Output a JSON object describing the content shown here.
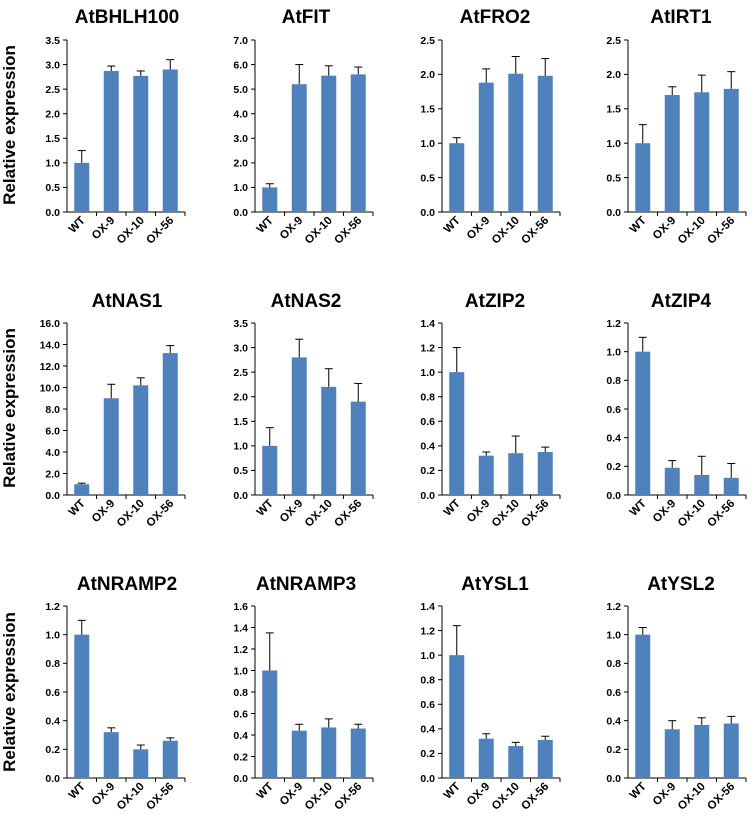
{
  "figure": {
    "ylabel": "Relative expression",
    "bar_color": "#4f81bd",
    "axis_color": "#000000"
  },
  "chart_data": [
    {
      "type": "bar",
      "title": "AtBHLH100",
      "categories": [
        "WT",
        "OX-9",
        "OX-10",
        "OX-56"
      ],
      "values": [
        1.0,
        2.87,
        2.77,
        2.9
      ],
      "errors": [
        0.25,
        0.1,
        0.1,
        0.2
      ],
      "ylim": [
        0,
        3.5
      ],
      "yticks": [
        "0.0",
        "0.5",
        "1.0",
        "1.5",
        "2.0",
        "2.5",
        "3.0",
        "3.5"
      ],
      "ylabel": "Relative expression"
    },
    {
      "type": "bar",
      "title": "AtFIT",
      "categories": [
        "WT",
        "OX-9",
        "OX-10",
        "OX-56"
      ],
      "values": [
        1.0,
        5.2,
        5.55,
        5.6
      ],
      "errors": [
        0.15,
        0.8,
        0.4,
        0.3
      ],
      "ylim": [
        0,
        7
      ],
      "yticks": [
        "0.0",
        "1.0",
        "2.0",
        "3.0",
        "4.0",
        "5.0",
        "6.0",
        "7.0"
      ],
      "ylabel": ""
    },
    {
      "type": "bar",
      "title": "AtFRO2",
      "categories": [
        "WT",
        "OX-9",
        "OX-10",
        "OX-56"
      ],
      "values": [
        1.0,
        1.88,
        2.01,
        1.98
      ],
      "errors": [
        0.08,
        0.2,
        0.25,
        0.25
      ],
      "ylim": [
        0,
        2.5
      ],
      "yticks": [
        "0.0",
        "0.5",
        "1.0",
        "1.5",
        "2.0",
        "2.5"
      ],
      "ylabel": ""
    },
    {
      "type": "bar",
      "title": "AtIRT1",
      "categories": [
        "WT",
        "OX-9",
        "OX-10",
        "OX-56"
      ],
      "values": [
        1.0,
        1.7,
        1.74,
        1.79
      ],
      "errors": [
        0.27,
        0.12,
        0.25,
        0.25
      ],
      "ylim": [
        0,
        2.5
      ],
      "yticks": [
        "0.0",
        "0.5",
        "1.0",
        "1.5",
        "2.0",
        "2.5"
      ],
      "ylabel": ""
    },
    {
      "type": "bar",
      "title": "AtNAS1",
      "categories": [
        "WT",
        "OX-9",
        "OX-10",
        "OX-56"
      ],
      "values": [
        1.0,
        9.0,
        10.2,
        13.2
      ],
      "errors": [
        0.1,
        1.3,
        0.7,
        0.7
      ],
      "ylim": [
        0,
        16
      ],
      "yticks": [
        "0.0",
        "2.0",
        "4.0",
        "6.0",
        "8.0",
        "10.0",
        "12.0",
        "14.0",
        "16.0"
      ],
      "ylabel": "Relative expression"
    },
    {
      "type": "bar",
      "title": "AtNAS2",
      "categories": [
        "WT",
        "OX-9",
        "OX-10",
        "OX-56"
      ],
      "values": [
        1.0,
        2.8,
        2.2,
        1.9
      ],
      "errors": [
        0.37,
        0.37,
        0.37,
        0.37
      ],
      "ylim": [
        0,
        3.5
      ],
      "yticks": [
        "0.0",
        "0.5",
        "1.0",
        "1.5",
        "2.0",
        "2.5",
        "3.0",
        "3.5"
      ],
      "ylabel": ""
    },
    {
      "type": "bar",
      "title": "AtZIP2",
      "categories": [
        "WT",
        "OX-9",
        "OX-10",
        "OX-56"
      ],
      "values": [
        1.0,
        0.32,
        0.34,
        0.35
      ],
      "errors": [
        0.2,
        0.03,
        0.14,
        0.04
      ],
      "ylim": [
        0,
        1.4
      ],
      "yticks": [
        "0.0",
        "0.2",
        "0.4",
        "0.6",
        "0.8",
        "1.0",
        "1.2",
        "1.4"
      ],
      "ylabel": ""
    },
    {
      "type": "bar",
      "title": "AtZIP4",
      "categories": [
        "WT",
        "OX-9",
        "OX-10",
        "OX-56"
      ],
      "values": [
        1.0,
        0.19,
        0.14,
        0.12
      ],
      "errors": [
        0.1,
        0.05,
        0.13,
        0.1
      ],
      "ylim": [
        0,
        1.2
      ],
      "yticks": [
        "0.0",
        "0.2",
        "0.4",
        "0.6",
        "0.8",
        "1.0",
        "1.2"
      ],
      "ylabel": ""
    },
    {
      "type": "bar",
      "title": "AtNRAMP2",
      "categories": [
        "WT",
        "OX-9",
        "OX-10",
        "OX-56"
      ],
      "values": [
        1.0,
        0.32,
        0.2,
        0.26
      ],
      "errors": [
        0.1,
        0.03,
        0.03,
        0.02
      ],
      "ylim": [
        0,
        1.2
      ],
      "yticks": [
        "0.0",
        "0.2",
        "0.4",
        "0.6",
        "0.8",
        "1.0",
        "1.2"
      ],
      "ylabel": "Relative expression"
    },
    {
      "type": "bar",
      "title": "AtNRAMP3",
      "categories": [
        "WT",
        "OX-9",
        "OX-10",
        "OX-56"
      ],
      "values": [
        1.0,
        0.44,
        0.47,
        0.46
      ],
      "errors": [
        0.35,
        0.06,
        0.08,
        0.04
      ],
      "ylim": [
        0,
        1.6
      ],
      "yticks": [
        "0.0",
        "0.2",
        "0.4",
        "0.6",
        "0.8",
        "1.0",
        "1.2",
        "1.4",
        "1.6"
      ],
      "ylabel": ""
    },
    {
      "type": "bar",
      "title": "AtYSL1",
      "categories": [
        "WT",
        "OX-9",
        "OX-10",
        "OX-56"
      ],
      "values": [
        1.0,
        0.32,
        0.26,
        0.31
      ],
      "errors": [
        0.24,
        0.04,
        0.03,
        0.03
      ],
      "ylim": [
        0,
        1.4
      ],
      "yticks": [
        "0.0",
        "0.2",
        "0.4",
        "0.6",
        "0.8",
        "1.0",
        "1.2",
        "1.4"
      ],
      "ylabel": ""
    },
    {
      "type": "bar",
      "title": "AtYSL2",
      "categories": [
        "WT",
        "OX-9",
        "OX-10",
        "OX-56"
      ],
      "values": [
        1.0,
        0.34,
        0.37,
        0.38
      ],
      "errors": [
        0.05,
        0.06,
        0.05,
        0.05
      ],
      "ylim": [
        0,
        1.2
      ],
      "yticks": [
        "0.0",
        "0.2",
        "0.4",
        "0.6",
        "0.8",
        "1.0",
        "1.2"
      ],
      "ylabel": ""
    }
  ]
}
